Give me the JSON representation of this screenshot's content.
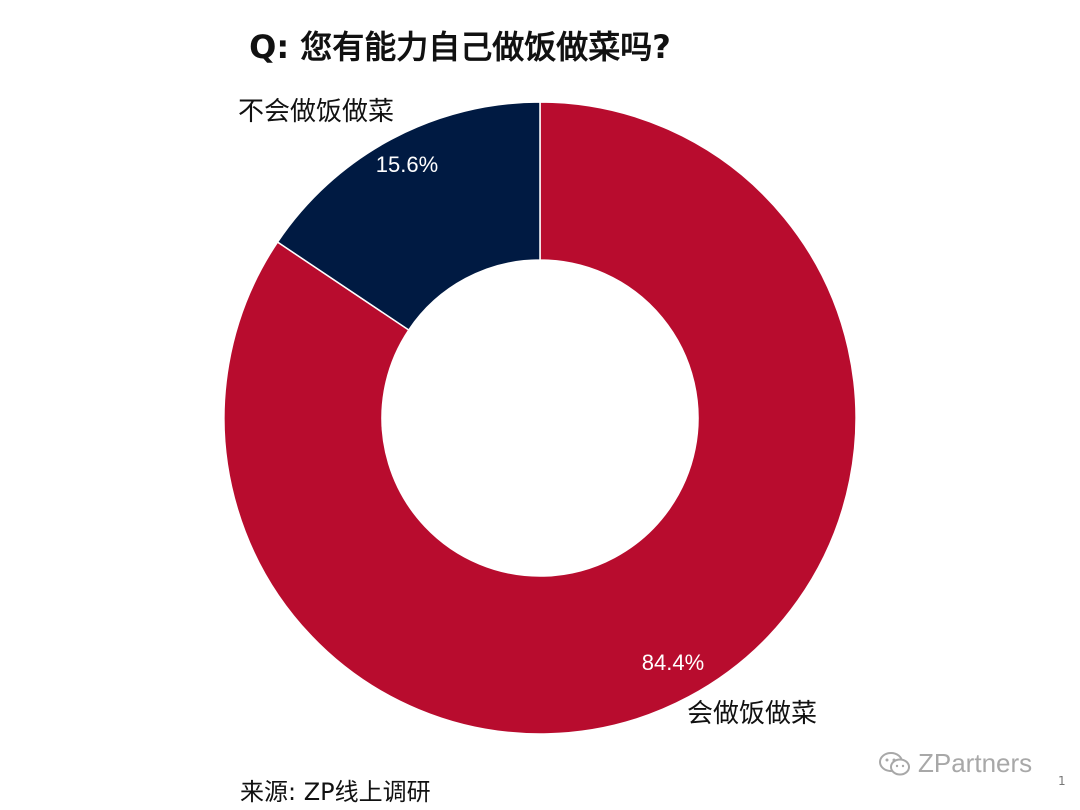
{
  "chart_data": {
    "type": "pie",
    "title": "Q: 您有能力自己做饭做菜吗?",
    "slices": [
      {
        "label": "会做饭做菜",
        "value": 84.4,
        "value_label": "84.4%",
        "color": "#b80c2e"
      },
      {
        "label": "不会做饭做菜",
        "value": 15.6,
        "value_label": "15.6%",
        "color": "#001a42"
      }
    ],
    "start": "top, clockwise",
    "legend": "none"
  },
  "source": "来源: ZP线上调研",
  "watermark": "ZPartners",
  "page_number": "1"
}
